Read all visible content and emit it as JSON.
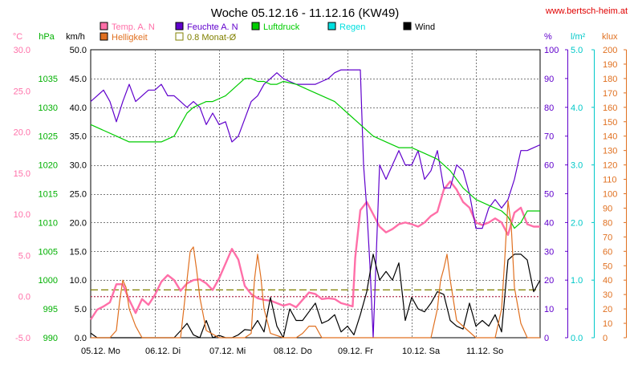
{
  "chart_data": {
    "type": "line",
    "title": "Woche 05.12.16 - 11.12.16 (KW49)",
    "source": "www.bertsch-heim.at",
    "x_ticks": [
      "05.12.  Mo",
      "06.12.  Di",
      "07.12.  Mi",
      "08.12.  Do",
      "09.12.  Fr",
      "10.12.  Sa",
      "11.12.  So"
    ],
    "x_range_days": [
      0,
      7
    ],
    "axes": [
      {
        "id": "temp",
        "label": "°C",
        "min": -5,
        "max": 30,
        "ticks": [
          "-5.0",
          "0.0",
          "5.0",
          "10.0",
          "15.0",
          "20.0",
          "25.0",
          "30.0"
        ],
        "tick_values": [
          -5,
          0,
          5,
          10,
          15,
          20,
          25,
          30
        ],
        "color": "#FF6FA8",
        "side": "left"
      },
      {
        "id": "hpa",
        "label": "hPa",
        "min": 990,
        "max": 1040,
        "ticks": [
          "990",
          "995",
          "1000",
          "1005",
          "1010",
          "1015",
          "1020",
          "1025",
          "1030",
          "1035"
        ],
        "tick_values": [
          990,
          995,
          1000,
          1005,
          1010,
          1015,
          1020,
          1025,
          1030,
          1035
        ],
        "color": "#00B000",
        "side": "left"
      },
      {
        "id": "wind",
        "label": "km/h",
        "min": 0,
        "max": 50,
        "ticks": [
          "0.0",
          "5.0",
          "10.0",
          "15.0",
          "20.0",
          "25.0",
          "30.0",
          "35.0",
          "40.0",
          "45.0",
          "50.0"
        ],
        "tick_values": [
          0,
          5,
          10,
          15,
          20,
          25,
          30,
          35,
          40,
          45,
          50
        ],
        "color": "#000000",
        "side": "left"
      },
      {
        "id": "pct",
        "label": "%",
        "min": 0,
        "max": 100,
        "ticks": [
          "0",
          "10",
          "20",
          "30",
          "40",
          "50",
          "60",
          "70",
          "80",
          "90",
          "100"
        ],
        "tick_values": [
          0,
          10,
          20,
          30,
          40,
          50,
          60,
          70,
          80,
          90,
          100
        ],
        "color": "#6000CC",
        "side": "right"
      },
      {
        "id": "rain",
        "label": "l/m²",
        "min": 0,
        "max": 5,
        "ticks": [
          "0.0",
          "1.0",
          "2.0",
          "3.0",
          "4.0",
          "5.0"
        ],
        "tick_values": [
          0,
          1,
          2,
          3,
          4,
          5
        ],
        "color": "#00C8C8",
        "side": "right"
      },
      {
        "id": "klux",
        "label": "klux",
        "min": 0,
        "max": 200,
        "ticks": [
          "0",
          "10",
          "20",
          "30",
          "40",
          "50",
          "60",
          "70",
          "80",
          "90",
          "100",
          "110",
          "120",
          "130",
          "140",
          "150",
          "160",
          "170",
          "180",
          "190",
          "200"
        ],
        "tick_values": [
          0,
          10,
          20,
          30,
          40,
          50,
          60,
          70,
          80,
          90,
          100,
          110,
          120,
          130,
          140,
          150,
          160,
          170,
          180,
          190,
          200
        ],
        "color": "#E07020",
        "side": "right"
      }
    ],
    "legend": [
      {
        "name": "Temp. A. N",
        "color": "#FF6FA8"
      },
      {
        "name": "Feuchte A. N",
        "color": "#6000CC"
      },
      {
        "name": "Luftdruck",
        "color": "#00CC00"
      },
      {
        "name": "Regen",
        "color": "#00E0E0"
      },
      {
        "name": "Wind",
        "color": "#000000"
      },
      {
        "name": "Helligkeit",
        "color": "#E07020"
      },
      {
        "name": "0.8 Monat-Ø",
        "color": "#808000"
      }
    ],
    "grid": true,
    "reference_lines": [
      {
        "name": "0.8 Monat-Ø",
        "axis": "wind",
        "value": 8.3,
        "color": "#808000"
      },
      {
        "name": "0 °C",
        "axis": "temp",
        "value": 0,
        "color": "#B03050"
      }
    ],
    "series": [
      {
        "name": "Temp. A. N",
        "axis": "temp",
        "color": "#FF6FA8",
        "x": [
          0,
          0.1,
          0.2,
          0.3,
          0.4,
          0.5,
          0.6,
          0.7,
          0.8,
          0.9,
          1.0,
          1.1,
          1.2,
          1.3,
          1.4,
          1.5,
          1.6,
          1.7,
          1.8,
          1.9,
          2.0,
          2.1,
          2.2,
          2.3,
          2.4,
          2.5,
          2.6,
          2.7,
          2.8,
          2.9,
          3.0,
          3.1,
          3.2,
          3.3,
          3.4,
          3.5,
          3.6,
          3.7,
          3.8,
          3.9,
          4.0,
          4.08,
          4.12,
          4.2,
          4.3,
          4.4,
          4.5,
          4.6,
          4.7,
          4.8,
          4.9,
          5.0,
          5.1,
          5.2,
          5.3,
          5.4,
          5.5,
          5.6,
          5.7,
          5.8,
          5.9,
          6.0,
          6.1,
          6.2,
          6.3,
          6.4,
          6.5,
          6.6,
          6.7,
          6.8,
          6.9,
          7.0
        ],
        "y": [
          -2.8,
          -1.6,
          -1.2,
          -0.7,
          1.5,
          1.5,
          -0.4,
          -2.0,
          -0.3,
          -1.0,
          0.2,
          1.8,
          2.6,
          2.0,
          0.7,
          1.6,
          2.0,
          2.1,
          1.6,
          0.8,
          2.2,
          4.0,
          5.8,
          4.5,
          1.3,
          0.3,
          -0.2,
          -0.4,
          -0.5,
          -0.8,
          -1.1,
          -0.9,
          -1.3,
          -0.4,
          0.5,
          0.3,
          -0.3,
          -0.2,
          -0.3,
          -0.8,
          -1.0,
          -1.2,
          4.7,
          10.5,
          11.5,
          10.0,
          8.5,
          7.8,
          8.2,
          8.8,
          9.0,
          8.8,
          8.5,
          9.0,
          9.8,
          10.3,
          13.0,
          14.0,
          13.0,
          11.5,
          10.8,
          9.0,
          8.7,
          9.0,
          9.5,
          9.0,
          7.5,
          10.2,
          10.8,
          8.8,
          8.5,
          8.5
        ]
      },
      {
        "name": "Feuchte A. N",
        "axis": "pct",
        "color": "#6000CC",
        "x": [
          0,
          0.1,
          0.2,
          0.3,
          0.4,
          0.5,
          0.6,
          0.7,
          0.8,
          0.9,
          1.0,
          1.1,
          1.2,
          1.3,
          1.4,
          1.5,
          1.6,
          1.7,
          1.8,
          1.9,
          2.0,
          2.1,
          2.2,
          2.3,
          2.4,
          2.5,
          2.6,
          2.7,
          2.8,
          2.9,
          3.0,
          3.1,
          3.2,
          3.3,
          3.4,
          3.5,
          3.6,
          3.7,
          3.8,
          3.9,
          4.0,
          4.1,
          4.2,
          4.25,
          4.3,
          4.35,
          4.4,
          4.5,
          4.6,
          4.7,
          4.8,
          4.9,
          5.0,
          5.1,
          5.2,
          5.3,
          5.4,
          5.5,
          5.6,
          5.7,
          5.8,
          5.9,
          6.0,
          6.1,
          6.2,
          6.3,
          6.4,
          6.5,
          6.6,
          6.7,
          6.8,
          6.9,
          7.0
        ],
        "y": [
          82,
          84,
          86,
          82,
          75,
          82,
          88,
          82,
          84,
          86,
          86,
          88,
          84,
          84,
          82,
          80,
          82,
          80,
          74,
          78,
          74,
          75,
          68,
          70,
          76,
          82,
          84,
          88,
          90,
          92,
          90,
          89,
          88,
          88,
          88,
          88,
          89,
          90,
          92,
          93,
          93,
          93,
          93,
          60,
          45,
          25,
          0,
          60,
          55,
          60,
          65,
          60,
          60,
          65,
          55,
          58,
          65,
          52,
          52,
          60,
          58,
          50,
          38,
          38,
          45,
          48,
          45,
          48,
          55,
          65,
          65,
          66,
          67
        ]
      },
      {
        "name": "Luftdruck",
        "axis": "hpa",
        "color": "#00CC00",
        "x": [
          0,
          0.2,
          0.4,
          0.6,
          0.8,
          1.0,
          1.1,
          1.2,
          1.3,
          1.4,
          1.5,
          1.6,
          1.7,
          1.8,
          1.9,
          2.0,
          2.1,
          2.2,
          2.3,
          2.4,
          2.5,
          2.6,
          2.7,
          2.8,
          2.9,
          3.0,
          3.2,
          3.4,
          3.6,
          3.8,
          4.0,
          4.2,
          4.4,
          4.6,
          4.8,
          5.0,
          5.2,
          5.4,
          5.6,
          5.8,
          6.0,
          6.2,
          6.4,
          6.5,
          6.6,
          6.7,
          6.8,
          6.9,
          7.0
        ],
        "y": [
          1027,
          1026,
          1025,
          1024,
          1024,
          1024,
          1024,
          1024.5,
          1025,
          1027,
          1029,
          1030,
          1030.5,
          1031,
          1031,
          1031.5,
          1032,
          1033,
          1034,
          1035,
          1035,
          1034.5,
          1034.5,
          1034,
          1034,
          1034.5,
          1034,
          1033,
          1032,
          1031,
          1029,
          1027,
          1025,
          1024,
          1023,
          1023,
          1022,
          1021,
          1019,
          1016,
          1014,
          1013,
          1012,
          1011,
          1009,
          1010,
          1012,
          1012,
          1012
        ]
      },
      {
        "name": "Wind",
        "axis": "wind",
        "color": "#000000",
        "x": [
          0,
          0.1,
          0.2,
          0.3,
          0.4,
          0.5,
          0.6,
          0.7,
          0.8,
          0.9,
          1.0,
          1.1,
          1.2,
          1.3,
          1.4,
          1.5,
          1.6,
          1.7,
          1.8,
          1.9,
          2.0,
          2.1,
          2.2,
          2.3,
          2.4,
          2.5,
          2.6,
          2.7,
          2.8,
          2.9,
          3.0,
          3.1,
          3.2,
          3.3,
          3.4,
          3.5,
          3.6,
          3.7,
          3.8,
          3.9,
          4.0,
          4.1,
          4.2,
          4.3,
          4.4,
          4.5,
          4.6,
          4.7,
          4.8,
          4.9,
          5.0,
          5.1,
          5.2,
          5.3,
          5.4,
          5.5,
          5.6,
          5.7,
          5.8,
          5.9,
          6.0,
          6.1,
          6.2,
          6.3,
          6.4,
          6.5,
          6.6,
          6.7,
          6.8,
          6.9,
          7.0
        ],
        "y": [
          0.8,
          0,
          0,
          0,
          0,
          0,
          0,
          0,
          0,
          0,
          0,
          0,
          0,
          0,
          1.2,
          2.5,
          0.5,
          0,
          3.0,
          0,
          0.4,
          0,
          0,
          0.5,
          1.4,
          1.3,
          3.0,
          1.0,
          7.0,
          2.0,
          0,
          5.0,
          3.0,
          3.0,
          4.5,
          6.0,
          2.5,
          3.0,
          4.0,
          1.0,
          2.0,
          0.5,
          4.0,
          8.0,
          14.5,
          10.0,
          11.5,
          10.0,
          13.0,
          3.0,
          7.0,
          5.0,
          4.5,
          6.0,
          8.0,
          7.5,
          3.0,
          2.0,
          1.5,
          6.0,
          2.0,
          3.0,
          2.0,
          4.0,
          1.0,
          13.5,
          14.5,
          14.5,
          13.5,
          8.0,
          10.0
        ]
      },
      {
        "name": "Helligkeit",
        "axis": "klux",
        "color": "#E07020",
        "x": [
          0,
          0.1,
          0.2,
          0.3,
          0.4,
          0.45,
          0.5,
          0.55,
          0.6,
          0.7,
          0.8,
          1.0,
          1.1,
          1.2,
          1.3,
          1.4,
          1.5,
          1.55,
          1.6,
          1.65,
          1.7,
          1.8,
          2.0,
          2.1,
          2.2,
          2.3,
          2.4,
          2.5,
          2.55,
          2.6,
          2.65,
          2.7,
          2.8,
          3.0,
          3.1,
          3.2,
          3.3,
          3.4,
          3.5,
          3.6,
          3.7,
          3.8,
          4.0,
          4.3,
          4.4,
          4.5,
          4.6,
          4.7,
          4.8,
          5.0,
          5.2,
          5.3,
          5.4,
          5.45,
          5.5,
          5.55,
          5.6,
          5.7,
          6.0,
          6.1,
          6.2,
          6.3,
          6.4,
          6.45,
          6.5,
          6.55,
          6.6,
          6.7,
          6.8,
          7.0
        ],
        "y": [
          0,
          0,
          0,
          0,
          5,
          25,
          40,
          35,
          20,
          8,
          0,
          0,
          0,
          0,
          0,
          0,
          40,
          60,
          63,
          47,
          28,
          5,
          0,
          0,
          0,
          0,
          0,
          3,
          40,
          58,
          42,
          20,
          3,
          0,
          0,
          0,
          3,
          8,
          8,
          0,
          0,
          0,
          0,
          0,
          0,
          0,
          0,
          0,
          0,
          0,
          0,
          0,
          20,
          40,
          48,
          58,
          40,
          12,
          0,
          0,
          0,
          0,
          20,
          55,
          95,
          78,
          35,
          10,
          0,
          0
        ]
      }
    ]
  }
}
